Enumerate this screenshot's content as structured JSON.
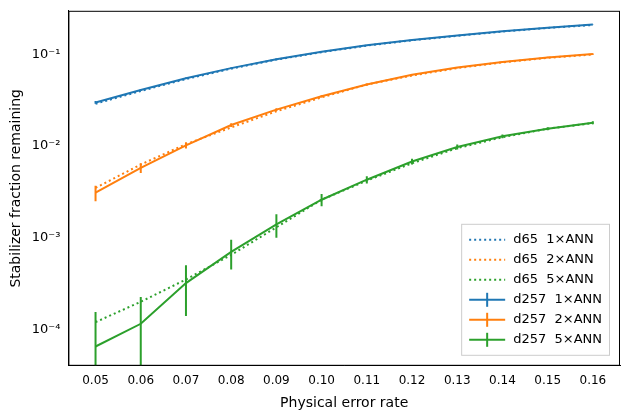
{
  "chart_data": {
    "type": "line",
    "x_label": "Physical error rate",
    "y_label": "Stabilizer fraction remaining",
    "log": "y",
    "grid": false,
    "legend": "lower right",
    "x": [
      0.05,
      0.06,
      0.07,
      0.08,
      0.09,
      0.1,
      0.11,
      0.12,
      0.13,
      0.14,
      0.15,
      0.16
    ],
    "xlim": [
      0.044,
      0.166
    ],
    "xticks": [
      {
        "value": 0.05,
        "label": "0.05"
      },
      {
        "value": 0.06,
        "label": "0.06"
      },
      {
        "value": 0.07,
        "label": "0.07"
      },
      {
        "value": 0.08,
        "label": "0.08"
      },
      {
        "value": 0.09,
        "label": "0.09"
      },
      {
        "value": 0.1,
        "label": "0.10"
      },
      {
        "value": 0.11,
        "label": "0.11"
      },
      {
        "value": 0.12,
        "label": "0.12"
      },
      {
        "value": 0.13,
        "label": "0.13"
      },
      {
        "value": 0.14,
        "label": "0.14"
      },
      {
        "value": 0.15,
        "label": "0.15"
      },
      {
        "value": 0.16,
        "label": "0.16"
      }
    ],
    "ylim": [
      4e-05,
      0.3
    ],
    "yticks": [
      {
        "value": 0.0001,
        "label": "10⁻⁴"
      },
      {
        "value": 0.001,
        "label": "10⁻³"
      },
      {
        "value": 0.01,
        "label": "10⁻²"
      },
      {
        "value": 0.1,
        "label": "10⁻¹"
      }
    ],
    "series": [
      {
        "name": "d65  1×ANN",
        "color": "#1f77b4",
        "line_style": "dotted",
        "values": [
          0.029,
          0.04,
          0.054,
          0.07,
          0.088,
          0.106,
          0.125,
          0.143,
          0.16,
          0.178,
          0.195,
          0.21
        ]
      },
      {
        "name": "d65  2×ANN",
        "color": "#ff7f0e",
        "line_style": "dotted",
        "values": [
          0.0035,
          0.0063,
          0.0105,
          0.016,
          0.024,
          0.034,
          0.047,
          0.059,
          0.071,
          0.082,
          0.092,
          0.1
        ]
      },
      {
        "name": "d65  5×ANN",
        "color": "#2ca02c",
        "line_style": "dotted",
        "values": [
          0.00012,
          0.0002,
          0.00035,
          0.00065,
          0.0013,
          0.0026,
          0.0042,
          0.0065,
          0.0095,
          0.0125,
          0.0155,
          0.0178
        ]
      },
      {
        "name": "d257  1×ANN",
        "color": "#1f77b4",
        "line_style": "solid",
        "values": [
          0.03,
          0.041,
          0.055,
          0.071,
          0.089,
          0.107,
          0.126,
          0.144,
          0.161,
          0.179,
          0.196,
          0.212
        ],
        "errors": [
          0.001,
          0.001,
          0.001,
          0.001,
          0.001,
          0.001,
          0.001,
          0.001,
          0.001,
          0.001,
          0.001,
          0.001
        ]
      },
      {
        "name": "d257  2×ANN",
        "color": "#ff7f0e",
        "line_style": "solid",
        "values": [
          0.0031,
          0.0058,
          0.0102,
          0.017,
          0.025,
          0.035,
          0.047,
          0.06,
          0.072,
          0.083,
          0.093,
          0.101
        ],
        "errors": [
          0.0006,
          0.0007,
          0.0008,
          0.0008,
          0.0009,
          0.001,
          0.001,
          0.0011,
          0.0012,
          0.0012,
          0.0013,
          0.0013
        ]
      },
      {
        "name": "d257  5×ANN",
        "color": "#2ca02c",
        "line_style": "solid",
        "values": [
          6.5e-05,
          0.000115,
          0.00032,
          0.0007,
          0.0014,
          0.0026,
          0.0043,
          0.0068,
          0.0098,
          0.0128,
          0.0155,
          0.018
        ],
        "errors": [
          9e-05,
          0.00011,
          0.00018,
          0.00025,
          0.0004,
          0.0004,
          0.0004,
          0.0005,
          0.0006,
          0.0006,
          0.0006,
          0.0007
        ]
      }
    ]
  }
}
